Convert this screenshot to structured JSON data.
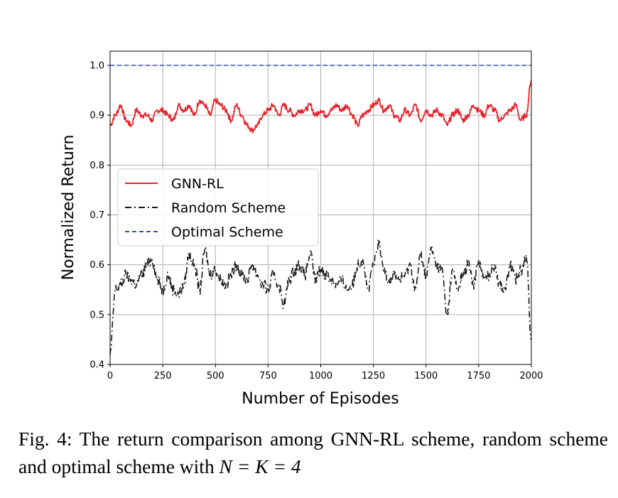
{
  "chart_data": {
    "type": "line",
    "xlabel": "Number of Episodes",
    "ylabel": "Normalized Return",
    "xlim": [
      0,
      2000
    ],
    "ylim": [
      0.4,
      1.03
    ],
    "xticks": [
      "0",
      "250",
      "500",
      "750",
      "1000",
      "1250",
      "1500",
      "1750",
      "2000"
    ],
    "yticks": [
      "0.4",
      "0.5",
      "0.6",
      "0.7",
      "0.8",
      "0.9",
      "1.0"
    ],
    "grid": true,
    "legend_position": "center-left",
    "series": [
      {
        "name": "GNN-RL",
        "color": "#e8222a",
        "style": "solid",
        "x": [
          0,
          25,
          50,
          75,
          100,
          125,
          150,
          175,
          200,
          225,
          250,
          275,
          300,
          325,
          350,
          375,
          400,
          425,
          450,
          475,
          500,
          525,
          550,
          575,
          600,
          625,
          650,
          675,
          700,
          725,
          750,
          775,
          800,
          825,
          850,
          875,
          900,
          925,
          950,
          975,
          1000,
          1025,
          1050,
          1075,
          1100,
          1125,
          1150,
          1175,
          1200,
          1225,
          1250,
          1275,
          1300,
          1325,
          1350,
          1375,
          1400,
          1425,
          1450,
          1475,
          1500,
          1525,
          1550,
          1575,
          1600,
          1625,
          1650,
          1675,
          1700,
          1725,
          1750,
          1775,
          1800,
          1825,
          1850,
          1875,
          1900,
          1925,
          1950,
          1975,
          2000
        ],
        "y": [
          0.88,
          0.9,
          0.92,
          0.89,
          0.88,
          0.91,
          0.9,
          0.9,
          0.89,
          0.91,
          0.91,
          0.9,
          0.89,
          0.92,
          0.91,
          0.92,
          0.9,
          0.93,
          0.92,
          0.9,
          0.93,
          0.92,
          0.91,
          0.89,
          0.92,
          0.9,
          0.88,
          0.87,
          0.88,
          0.9,
          0.91,
          0.92,
          0.9,
          0.92,
          0.91,
          0.9,
          0.91,
          0.91,
          0.92,
          0.9,
          0.91,
          0.9,
          0.91,
          0.92,
          0.91,
          0.92,
          0.9,
          0.88,
          0.9,
          0.91,
          0.92,
          0.93,
          0.91,
          0.92,
          0.9,
          0.89,
          0.91,
          0.9,
          0.92,
          0.89,
          0.91,
          0.9,
          0.91,
          0.9,
          0.88,
          0.9,
          0.91,
          0.89,
          0.9,
          0.92,
          0.91,
          0.9,
          0.92,
          0.91,
          0.89,
          0.9,
          0.91,
          0.92,
          0.89,
          0.9,
          0.97
        ]
      },
      {
        "name": "Random Scheme",
        "color": "#1a1a1a",
        "style": "dashdot",
        "x": [
          0,
          25,
          50,
          75,
          100,
          125,
          150,
          175,
          200,
          225,
          250,
          275,
          300,
          325,
          350,
          375,
          400,
          425,
          450,
          475,
          500,
          525,
          550,
          575,
          600,
          625,
          650,
          675,
          700,
          725,
          750,
          775,
          800,
          825,
          850,
          875,
          900,
          925,
          950,
          975,
          1000,
          1025,
          1050,
          1075,
          1100,
          1125,
          1150,
          1175,
          1200,
          1225,
          1250,
          1275,
          1300,
          1325,
          1350,
          1375,
          1400,
          1425,
          1450,
          1475,
          1500,
          1525,
          1550,
          1575,
          1600,
          1625,
          1650,
          1675,
          1700,
          1725,
          1750,
          1775,
          1800,
          1825,
          1850,
          1875,
          1900,
          1925,
          1950,
          1975,
          2000
        ],
        "y": [
          0.42,
          0.55,
          0.56,
          0.58,
          0.57,
          0.56,
          0.58,
          0.6,
          0.61,
          0.57,
          0.55,
          0.58,
          0.55,
          0.54,
          0.56,
          0.62,
          0.6,
          0.55,
          0.63,
          0.58,
          0.59,
          0.57,
          0.56,
          0.58,
          0.6,
          0.58,
          0.57,
          0.6,
          0.58,
          0.56,
          0.55,
          0.58,
          0.56,
          0.52,
          0.57,
          0.59,
          0.6,
          0.58,
          0.62,
          0.57,
          0.59,
          0.58,
          0.57,
          0.56,
          0.57,
          0.55,
          0.56,
          0.6,
          0.61,
          0.55,
          0.6,
          0.64,
          0.59,
          0.57,
          0.58,
          0.57,
          0.58,
          0.6,
          0.55,
          0.62,
          0.58,
          0.63,
          0.6,
          0.59,
          0.5,
          0.59,
          0.55,
          0.58,
          0.6,
          0.56,
          0.61,
          0.57,
          0.58,
          0.6,
          0.56,
          0.55,
          0.6,
          0.57,
          0.59,
          0.62,
          0.45
        ]
      },
      {
        "name": "Optimal Scheme",
        "color": "#3b4ca8",
        "style": "dashed",
        "x": [
          0,
          2000
        ],
        "y": [
          1.0,
          1.0
        ]
      }
    ]
  },
  "caption": {
    "prefix": "Fig. 4: The return comparison among GNN-RL scheme, random scheme and optimal scheme with ",
    "math": "N = K = 4"
  }
}
